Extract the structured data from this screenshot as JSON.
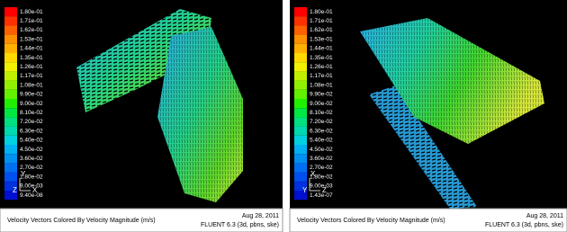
{
  "panels": [
    {
      "colorbar": [
        "1.80e-01",
        "1.71e-01",
        "1.62e-01",
        "1.53e-01",
        "1.44e-01",
        "1.35e-01",
        "1.26e-01",
        "1.17e-01",
        "1.08e-01",
        "9.90e-02",
        "9.00e-02",
        "8.10e-02",
        "7.20e-02",
        "6.30e-02",
        "5.40e-02",
        "4.50e-02",
        "3.60e-02",
        "2.70e-02",
        "1.80e-02",
        "9.00e-03",
        "9.40e-08"
      ],
      "axes": {
        "up": "Y",
        "left": "Z",
        "right": "X"
      },
      "footer": {
        "title": "Velocity Vectors Colored By Velocity Magnitude (m/s)",
        "date": "Aug 28, 2011",
        "solver": "FLUENT 6.3 (3d, pbns, ske)"
      }
    },
    {
      "colorbar": [
        "1.80e-01",
        "1.71e-01",
        "1.62e-01",
        "1.53e-01",
        "1.44e-01",
        "1.35e-01",
        "1.26e-01",
        "1.17e-01",
        "1.08e-01",
        "9.90e-02",
        "9.00e-02",
        "8.10e-02",
        "7.20e-02",
        "6.30e-02",
        "5.40e-02",
        "4.50e-02",
        "3.60e-02",
        "2.70e-02",
        "1.80e-02",
        "9.00e-03",
        "1.43e-07"
      ],
      "axes": {
        "up": "X",
        "left": "Y",
        "right": "Z"
      },
      "footer": {
        "title": "Velocity Vectors Colored By Velocity Magnitude (m/s)",
        "date": "Aug 28, 2011",
        "solver": "FLUENT 6.3 (3d, pbns, ske)"
      }
    }
  ]
}
